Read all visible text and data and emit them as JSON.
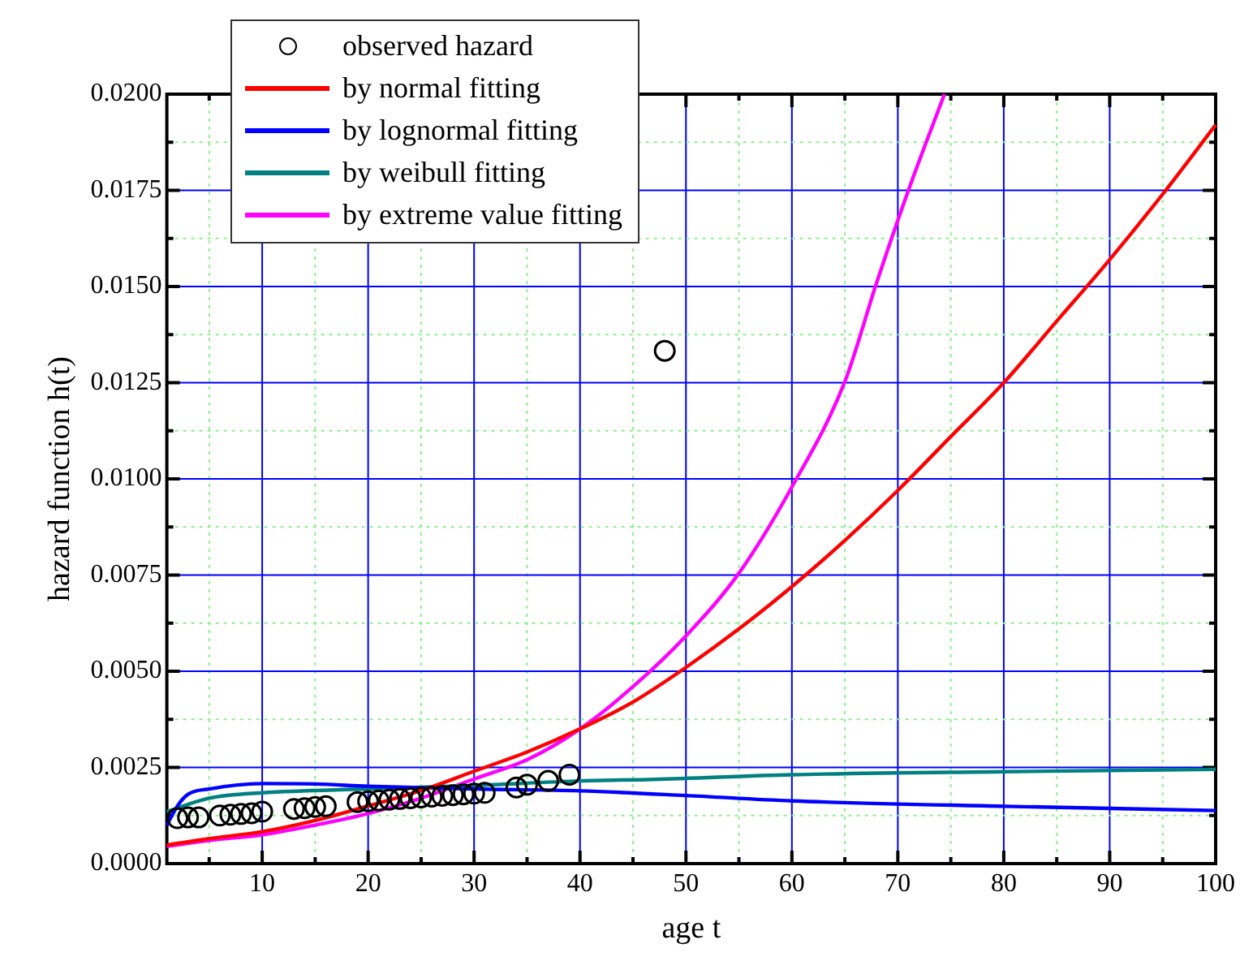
{
  "chart_data": {
    "type": "line",
    "xlabel": "age t",
    "ylabel": "hazard function h(t)",
    "xlim": [
      1,
      100
    ],
    "ylim": [
      0,
      0.02
    ],
    "xticks": [
      {
        "value": 5,
        "label": null
      },
      10,
      {
        "value": 15,
        "label": null
      },
      20,
      {
        "value": 25,
        "label": null
      },
      30,
      {
        "value": 35,
        "label": null
      },
      40,
      {
        "value": 45,
        "label": null
      },
      50,
      {
        "value": 55,
        "label": null
      },
      60,
      {
        "value": 65,
        "label": null
      },
      70,
      {
        "value": 75,
        "label": null
      },
      80,
      {
        "value": 85,
        "label": null
      },
      90,
      {
        "value": 95,
        "label": null
      },
      100
    ],
    "yticks": [
      {
        "value": 0,
        "label": "0.0000"
      },
      {
        "value": 0.00125,
        "label": null
      },
      0.0025,
      {
        "value": 0.00375,
        "label": null
      },
      {
        "value": 0.005,
        "label": "0.0050"
      },
      {
        "value": 0.00625,
        "label": null
      },
      0.0075,
      {
        "value": 0.00875,
        "label": null
      },
      {
        "value": 0.01,
        "label": "0.0100"
      },
      {
        "value": 0.01125,
        "label": null
      },
      0.0125,
      {
        "value": 0.01375,
        "label": null
      },
      {
        "value": 0.015,
        "label": "0.0150"
      },
      {
        "value": 0.01625,
        "label": null
      },
      0.0175,
      {
        "value": 0.01875,
        "label": null
      },
      {
        "value": 0.02,
        "label": "0.0200"
      }
    ],
    "grid": true,
    "legend": "top left",
    "series": [
      {
        "name": "observed hazard",
        "type": "scatter",
        "marker": "circle",
        "color": "#000000",
        "x": [
          2,
          3,
          4,
          6,
          7,
          8,
          9,
          10,
          13,
          14,
          15,
          16,
          19,
          20,
          21,
          22,
          23,
          24,
          25,
          26,
          27,
          28,
          29,
          30,
          31,
          34,
          35,
          37,
          39,
          48
        ],
        "values": [
          0.00118,
          0.0012,
          0.0012,
          0.00125,
          0.00127,
          0.00129,
          0.00131,
          0.00135,
          0.00142,
          0.00144,
          0.00147,
          0.00149,
          0.0016,
          0.00162,
          0.00164,
          0.00166,
          0.00168,
          0.0017,
          0.00172,
          0.00174,
          0.00176,
          0.00178,
          0.0018,
          0.00182,
          0.00184,
          0.00198,
          0.00205,
          0.00215,
          0.00231,
          0.01333
        ]
      },
      {
        "name": "by normal fitting",
        "type": "line",
        "marker": "none",
        "color": "#ff0000",
        "x": [
          1,
          5,
          10,
          15,
          20,
          25,
          30,
          35,
          40,
          45,
          50,
          55,
          60,
          65,
          70,
          75,
          80,
          85,
          90,
          95,
          100
        ],
        "values": [
          0.00048,
          0.00065,
          0.00083,
          0.00112,
          0.0015,
          0.0019,
          0.0024,
          0.0029,
          0.0035,
          0.0042,
          0.0051,
          0.0061,
          0.0072,
          0.0084,
          0.0097,
          0.0111,
          0.0125,
          0.0141,
          0.0157,
          0.0174,
          0.0192
        ]
      },
      {
        "name": "by lognormal fitting",
        "type": "line",
        "marker": "none",
        "color": "#0000ff",
        "x": [
          1,
          2,
          3,
          5,
          10,
          15,
          20,
          30,
          40,
          50,
          60,
          80,
          100
        ],
        "values": [
          0.001,
          0.0015,
          0.0018,
          0.00194,
          0.00208,
          0.00207,
          0.00201,
          0.00194,
          0.00189,
          0.00177,
          0.00163,
          0.00149,
          0.00138
        ]
      },
      {
        "name": "by weibull fitting",
        "type": "line",
        "marker": "none",
        "color": "#008080",
        "x": [
          1,
          5,
          10,
          20,
          30,
          40,
          47,
          60,
          80,
          100
        ],
        "values": [
          0.00135,
          0.0017,
          0.00184,
          0.00194,
          0.00203,
          0.00215,
          0.00219,
          0.00231,
          0.00239,
          0.00245
        ]
      },
      {
        "name": "by extreme value fitting",
        "type": "line",
        "marker": "none",
        "color": "#ff00ff",
        "x": [
          1,
          5,
          10,
          15,
          20,
          25,
          30,
          35,
          40,
          45,
          50,
          55,
          60,
          65,
          68,
          71,
          74.4
        ],
        "values": [
          0.00045,
          0.0006,
          0.00075,
          0.001,
          0.0013,
          0.0017,
          0.0022,
          0.0027,
          0.0035,
          0.0046,
          0.00592,
          0.00755,
          0.00979,
          0.01253,
          0.0151,
          0.0175,
          0.02
        ]
      }
    ]
  }
}
